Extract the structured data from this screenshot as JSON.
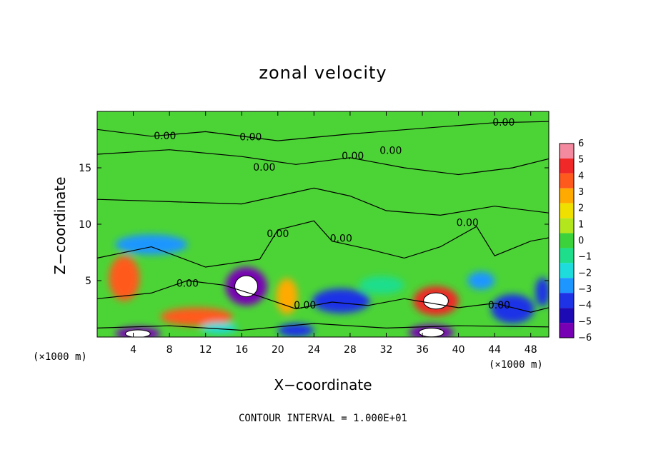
{
  "chart_data": {
    "type": "heatmap",
    "title": "zonal velocity",
    "xlabel": "X−coordinate",
    "ylabel": "Z−coordinate",
    "x_unit_left": "(×1000 m)",
    "x_unit_right": "(×1000 m)",
    "xlim": [
      0,
      50
    ],
    "ylim": [
      0,
      20
    ],
    "x_ticks": [
      4,
      8,
      12,
      16,
      20,
      24,
      28,
      32,
      36,
      40,
      44,
      48
    ],
    "y_ticks": [
      5,
      10,
      15
    ],
    "colorbar": {
      "labels": [
        "6",
        "5",
        "4",
        "3",
        "2",
        "1",
        "0",
        "−1",
        "−2",
        "−3",
        "−4",
        "−5",
        "−6"
      ],
      "colors": [
        "#f48aa0",
        "#f02828",
        "#ff5a1e",
        "#ffaa00",
        "#f0e000",
        "#b4e61e",
        "#3cd23c",
        "#1ede8c",
        "#1edcdc",
        "#1e96ff",
        "#1e32e6",
        "#1e0ab4",
        "#7800b4"
      ]
    },
    "contour_label": "0.00",
    "contour_labels": [
      {
        "x": 7.5,
        "z": 17.8
      },
      {
        "x": 17.0,
        "z": 17.7
      },
      {
        "x": 18.5,
        "z": 15.0
      },
      {
        "x": 28.3,
        "z": 16.0
      },
      {
        "x": 32.5,
        "z": 16.5
      },
      {
        "x": 45.0,
        "z": 19.0
      },
      {
        "x": 20.0,
        "z": 9.1
      },
      {
        "x": 27.0,
        "z": 8.7
      },
      {
        "x": 41.0,
        "z": 10.1
      },
      {
        "x": 10.0,
        "z": 4.7
      },
      {
        "x": 23.0,
        "z": 2.8
      },
      {
        "x": 44.5,
        "z": 2.8
      }
    ],
    "features": [
      {
        "x": 16.5,
        "z": 4.5,
        "rx": 2.3,
        "rz": 1.7,
        "level": -6
      },
      {
        "x": 3.0,
        "z": 5.2,
        "rx": 1.7,
        "rz": 2.0,
        "level": 4
      },
      {
        "x": 11.0,
        "z": 1.8,
        "rx": 4.0,
        "rz": 0.8,
        "level": 4
      },
      {
        "x": 21.0,
        "z": 3.6,
        "rx": 1.2,
        "rz": 1.6,
        "level": 3
      },
      {
        "x": 27.0,
        "z": 3.2,
        "rx": 3.2,
        "rz": 1.1,
        "level": -4
      },
      {
        "x": 37.5,
        "z": 3.2,
        "rx": 2.5,
        "rz": 1.3,
        "level": 5
      },
      {
        "x": 37.0,
        "z": 0.4,
        "rx": 2.5,
        "rz": 0.7,
        "level": -6
      },
      {
        "x": 46.0,
        "z": 2.5,
        "rx": 2.4,
        "rz": 1.3,
        "level": -4
      },
      {
        "x": 6.0,
        "z": 8.2,
        "rx": 4.0,
        "rz": 0.9,
        "level": -3
      },
      {
        "x": 49.3,
        "z": 4.0,
        "rx": 0.8,
        "rz": 1.3,
        "level": -4
      },
      {
        "x": 4.5,
        "z": 0.3,
        "rx": 2.5,
        "rz": 0.6,
        "level": -6
      },
      {
        "x": 22.0,
        "z": 0.6,
        "rx": 2.0,
        "rz": 0.6,
        "level": -4
      },
      {
        "x": 13.5,
        "z": 0.8,
        "rx": 2.0,
        "rz": 0.5,
        "level": -2
      },
      {
        "x": 31.5,
        "z": 4.6,
        "rx": 2.5,
        "rz": 0.8,
        "level": -1
      },
      {
        "x": 42.5,
        "z": 5.0,
        "rx": 1.5,
        "rz": 0.8,
        "level": -3
      }
    ],
    "contour_interval_note": "CONTOUR INTERVAL = 1.000E+01"
  }
}
